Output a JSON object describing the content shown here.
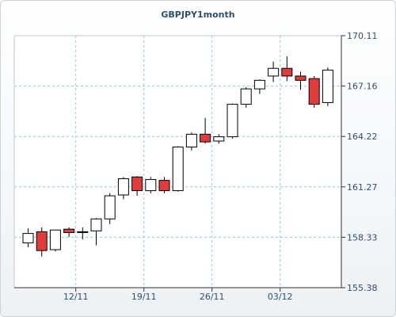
{
  "chart_data": {
    "type": "candlestick",
    "title": "GBPJPY1month",
    "ylim": [
      155.38,
      170.11
    ],
    "yticks": [
      "170.11",
      "167.16",
      "164.22",
      "161.27",
      "158.33",
      "155.38"
    ],
    "xtick_labels": [
      "12/11",
      "19/11",
      "26/11",
      "03/12"
    ],
    "xtick_index": [
      4,
      9,
      14,
      19
    ],
    "grid": true,
    "colors": {
      "up": "#ffffff",
      "down": "#e03c3c",
      "edge": "#000000",
      "grid": "#8fc9d6"
    },
    "candles": [
      {
        "o": 158.0,
        "h": 158.85,
        "l": 157.75,
        "c": 158.55
      },
      {
        "o": 158.65,
        "h": 158.9,
        "l": 157.2,
        "c": 157.55
      },
      {
        "o": 157.6,
        "h": 158.75,
        "l": 157.5,
        "c": 158.75
      },
      {
        "o": 158.8,
        "h": 158.9,
        "l": 158.35,
        "c": 158.6
      },
      {
        "o": 158.65,
        "h": 158.9,
        "l": 158.2,
        "c": 158.65
      },
      {
        "o": 158.7,
        "h": 159.45,
        "l": 157.85,
        "c": 159.4
      },
      {
        "o": 159.4,
        "h": 160.9,
        "l": 159.1,
        "c": 160.75
      },
      {
        "o": 160.8,
        "h": 161.85,
        "l": 160.55,
        "c": 161.75
      },
      {
        "o": 161.85,
        "h": 161.9,
        "l": 160.75,
        "c": 161.05
      },
      {
        "o": 161.05,
        "h": 161.85,
        "l": 160.9,
        "c": 161.7
      },
      {
        "o": 161.65,
        "h": 161.85,
        "l": 160.9,
        "c": 161.05
      },
      {
        "o": 161.05,
        "h": 163.65,
        "l": 161.0,
        "c": 163.6
      },
      {
        "o": 163.6,
        "h": 164.45,
        "l": 163.4,
        "c": 164.35
      },
      {
        "o": 164.35,
        "h": 165.3,
        "l": 163.8,
        "c": 163.9
      },
      {
        "o": 163.95,
        "h": 164.35,
        "l": 163.8,
        "c": 164.2
      },
      {
        "o": 164.2,
        "h": 166.15,
        "l": 164.1,
        "c": 166.1
      },
      {
        "o": 166.1,
        "h": 167.1,
        "l": 165.9,
        "c": 167.0
      },
      {
        "o": 167.0,
        "h": 167.55,
        "l": 166.7,
        "c": 167.5
      },
      {
        "o": 167.75,
        "h": 168.6,
        "l": 167.4,
        "c": 168.2
      },
      {
        "o": 168.2,
        "h": 168.9,
        "l": 167.45,
        "c": 167.75
      },
      {
        "o": 167.75,
        "h": 168.0,
        "l": 166.95,
        "c": 167.5
      },
      {
        "o": 167.6,
        "h": 167.75,
        "l": 165.9,
        "c": 166.1
      },
      {
        "o": 166.2,
        "h": 168.25,
        "l": 166.0,
        "c": 168.1
      }
    ]
  }
}
